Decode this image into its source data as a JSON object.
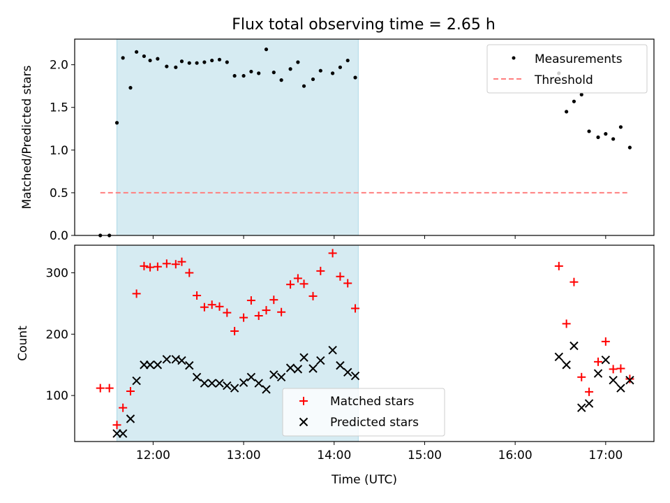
{
  "title": "Flux total observing time = 2.65 h",
  "colors": {
    "shade": "#add8e6",
    "measurement": "#000000",
    "threshold": "#ff7f7f",
    "matched": "#ff0000",
    "predicted": "#000000"
  },
  "chart_data": [
    {
      "type": "scatter",
      "ylabel": "Matched/Predicted stars",
      "ylim": [
        0,
        2.3
      ],
      "yticks": [
        0.0,
        0.5,
        1.0,
        1.5,
        2.0
      ],
      "ytick_labels": [
        "0.0",
        "0.5",
        "1.0",
        "1.5",
        "2.0"
      ],
      "xlim": [
        "11:08",
        "17:32"
      ],
      "xticks": [
        "12:00",
        "13:00",
        "14:00",
        "15:00",
        "16:00",
        "17:00"
      ],
      "shaded_span": [
        "11:36",
        "14:16"
      ],
      "legend": {
        "position": "top-right",
        "entries": [
          "Measurements",
          "Threshold"
        ]
      },
      "threshold": {
        "name": "Threshold",
        "y": 0.5,
        "x_range": [
          "11:25",
          "17:15"
        ]
      },
      "series": [
        {
          "name": "Measurements",
          "marker": "dot",
          "points": [
            [
              "11:25",
              0.0
            ],
            [
              "11:31",
              0.0
            ],
            [
              "11:36",
              1.32
            ],
            [
              "11:40",
              2.08
            ],
            [
              "11:45",
              1.73
            ],
            [
              "11:49",
              2.15
            ],
            [
              "11:54",
              2.1
            ],
            [
              "11:58",
              2.05
            ],
            [
              "12:03",
              2.07
            ],
            [
              "12:09",
              1.98
            ],
            [
              "12:15",
              1.97
            ],
            [
              "12:19",
              2.04
            ],
            [
              "12:24",
              2.02
            ],
            [
              "12:29",
              2.02
            ],
            [
              "12:34",
              2.03
            ],
            [
              "12:39",
              2.05
            ],
            [
              "12:44",
              2.06
            ],
            [
              "12:49",
              2.03
            ],
            [
              "12:54",
              1.87
            ],
            [
              "13:00",
              1.87
            ],
            [
              "13:05",
              1.92
            ],
            [
              "13:10",
              1.9
            ],
            [
              "13:15",
              2.18
            ],
            [
              "13:20",
              1.91
            ],
            [
              "13:25",
              1.82
            ],
            [
              "13:31",
              1.95
            ],
            [
              "13:36",
              2.03
            ],
            [
              "13:40",
              1.75
            ],
            [
              "13:46",
              1.83
            ],
            [
              "13:51",
              1.93
            ],
            [
              "13:59",
              1.9
            ],
            [
              "14:04",
              1.97
            ],
            [
              "14:09",
              2.05
            ],
            [
              "14:14",
              1.85
            ],
            [
              "16:29",
              1.9
            ],
            [
              "16:34",
              1.45
            ],
            [
              "16:39",
              1.57
            ],
            [
              "16:44",
              1.65
            ],
            [
              "16:49",
              1.22
            ],
            [
              "16:55",
              1.15
            ],
            [
              "17:00",
              1.19
            ],
            [
              "17:05",
              1.13
            ],
            [
              "17:10",
              1.27
            ],
            [
              "17:16",
              1.03
            ]
          ]
        }
      ]
    },
    {
      "type": "scatter",
      "ylabel": "Count",
      "xlabel": "Time (UTC)",
      "ylim": [
        25,
        345
      ],
      "yticks": [
        100,
        200,
        300
      ],
      "ytick_labels": [
        "100",
        "200",
        "300"
      ],
      "xlim": [
        "11:08",
        "17:32"
      ],
      "xticks": [
        "12:00",
        "13:00",
        "14:00",
        "15:00",
        "16:00",
        "17:00"
      ],
      "xtick_labels": [
        "12:00",
        "13:00",
        "14:00",
        "15:00",
        "16:00",
        "17:00"
      ],
      "shaded_span": [
        "11:36",
        "14:16"
      ],
      "legend": {
        "position": "lower-center",
        "entries": [
          "Matched stars",
          "Predicted stars"
        ]
      },
      "series": [
        {
          "name": "Matched stars",
          "marker": "plus",
          "points": [
            [
              "11:25",
              112
            ],
            [
              "11:31",
              112
            ],
            [
              "11:36",
              52
            ],
            [
              "11:40",
              80
            ],
            [
              "11:45",
              107
            ],
            [
              "11:49",
              266
            ],
            [
              "11:54",
              311
            ],
            [
              "11:58",
              309
            ],
            [
              "12:03",
              310
            ],
            [
              "12:09",
              315
            ],
            [
              "12:15",
              314
            ],
            [
              "12:19",
              318
            ],
            [
              "12:24",
              300
            ],
            [
              "12:29",
              263
            ],
            [
              "12:34",
              244
            ],
            [
              "12:39",
              248
            ],
            [
              "12:44",
              245
            ],
            [
              "12:49",
              235
            ],
            [
              "12:54",
              205
            ],
            [
              "13:00",
              227
            ],
            [
              "13:05",
              255
            ],
            [
              "13:10",
              230
            ],
            [
              "13:15",
              239
            ],
            [
              "13:20",
              256
            ],
            [
              "13:25",
              236
            ],
            [
              "13:31",
              281
            ],
            [
              "13:36",
              291
            ],
            [
              "13:40",
              282
            ],
            [
              "13:46",
              262
            ],
            [
              "13:51",
              303
            ],
            [
              "13:59",
              332
            ],
            [
              "14:04",
              294
            ],
            [
              "14:09",
              283
            ],
            [
              "14:14",
              242
            ],
            [
              "16:29",
              311
            ],
            [
              "16:34",
              217
            ],
            [
              "16:39",
              285
            ],
            [
              "16:44",
              130
            ],
            [
              "16:49",
              106
            ],
            [
              "16:55",
              155
            ],
            [
              "17:00",
              188
            ],
            [
              "17:05",
              143
            ],
            [
              "17:10",
              144
            ],
            [
              "17:16",
              127
            ]
          ]
        },
        {
          "name": "Predicted stars",
          "marker": "x",
          "points": [
            [
              "11:36",
              38
            ],
            [
              "11:40",
              38
            ],
            [
              "11:45",
              62
            ],
            [
              "11:49",
              124
            ],
            [
              "11:54",
              150
            ],
            [
              "11:58",
              150
            ],
            [
              "12:03",
              150
            ],
            [
              "12:09",
              159
            ],
            [
              "12:15",
              159
            ],
            [
              "12:19",
              157
            ],
            [
              "12:24",
              149
            ],
            [
              "12:29",
              130
            ],
            [
              "12:34",
              120
            ],
            [
              "12:39",
              120
            ],
            [
              "12:44",
              120
            ],
            [
              "12:49",
              116
            ],
            [
              "12:54",
              112
            ],
            [
              "13:00",
              121
            ],
            [
              "13:05",
              130
            ],
            [
              "13:10",
              120
            ],
            [
              "13:15",
              110
            ],
            [
              "13:20",
              134
            ],
            [
              "13:25",
              130
            ],
            [
              "13:31",
              145
            ],
            [
              "13:36",
              143
            ],
            [
              "13:40",
              162
            ],
            [
              "13:46",
              144
            ],
            [
              "13:51",
              157
            ],
            [
              "13:59",
              174
            ],
            [
              "14:04",
              149
            ],
            [
              "14:09",
              138
            ],
            [
              "14:14",
              132
            ],
            [
              "16:29",
              163
            ],
            [
              "16:34",
              150
            ],
            [
              "16:39",
              181
            ],
            [
              "16:44",
              80
            ],
            [
              "16:49",
              87
            ],
            [
              "16:55",
              136
            ],
            [
              "17:00",
              158
            ],
            [
              "17:05",
              125
            ],
            [
              "17:10",
              112
            ],
            [
              "17:16",
              125
            ]
          ]
        }
      ]
    }
  ]
}
